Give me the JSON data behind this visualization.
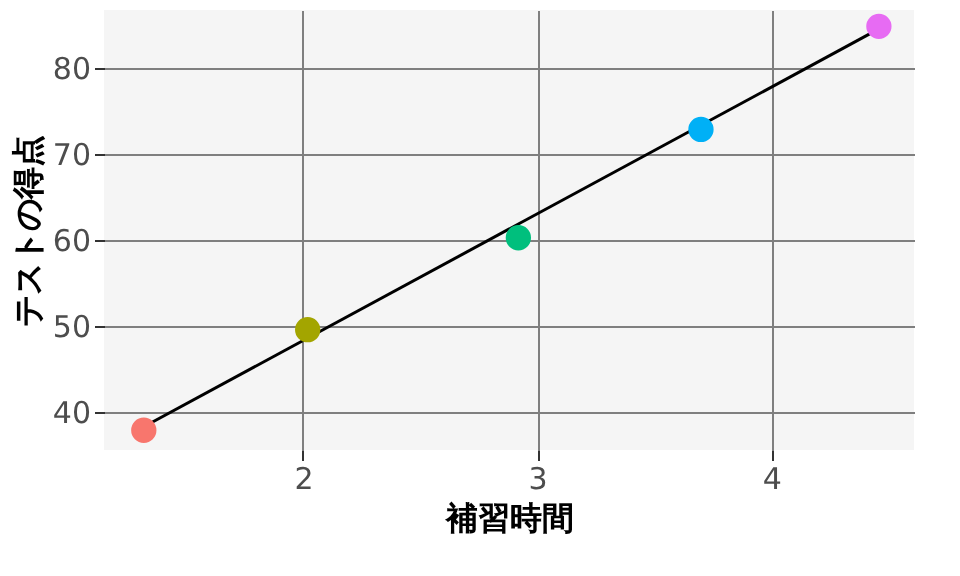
{
  "chart_data": {
    "type": "scatter",
    "xlabel": "補習時間",
    "ylabel": "テストの得点",
    "xlim": [
      1.15,
      4.61
    ],
    "ylim": [
      35.6,
      86.8
    ],
    "xticks": [
      2,
      3,
      4
    ],
    "yticks": [
      40,
      50,
      60,
      70,
      80
    ],
    "grid": true,
    "series": [
      {
        "type": "scatter",
        "marker": "circle",
        "x": [
          1.32,
          2.02,
          2.92,
          3.7,
          4.46
        ],
        "values": [
          37.9,
          49.6,
          60.3,
          72.9,
          84.9
        ],
        "colors": [
          "#f8766d",
          "#a3a500",
          "#00bf7d",
          "#00b0f6",
          "#e76bf3"
        ]
      },
      {
        "type": "line",
        "x": [
          1.32,
          4.46
        ],
        "values": [
          38.3,
          84.6
        ],
        "color": "#000000"
      }
    ]
  }
}
